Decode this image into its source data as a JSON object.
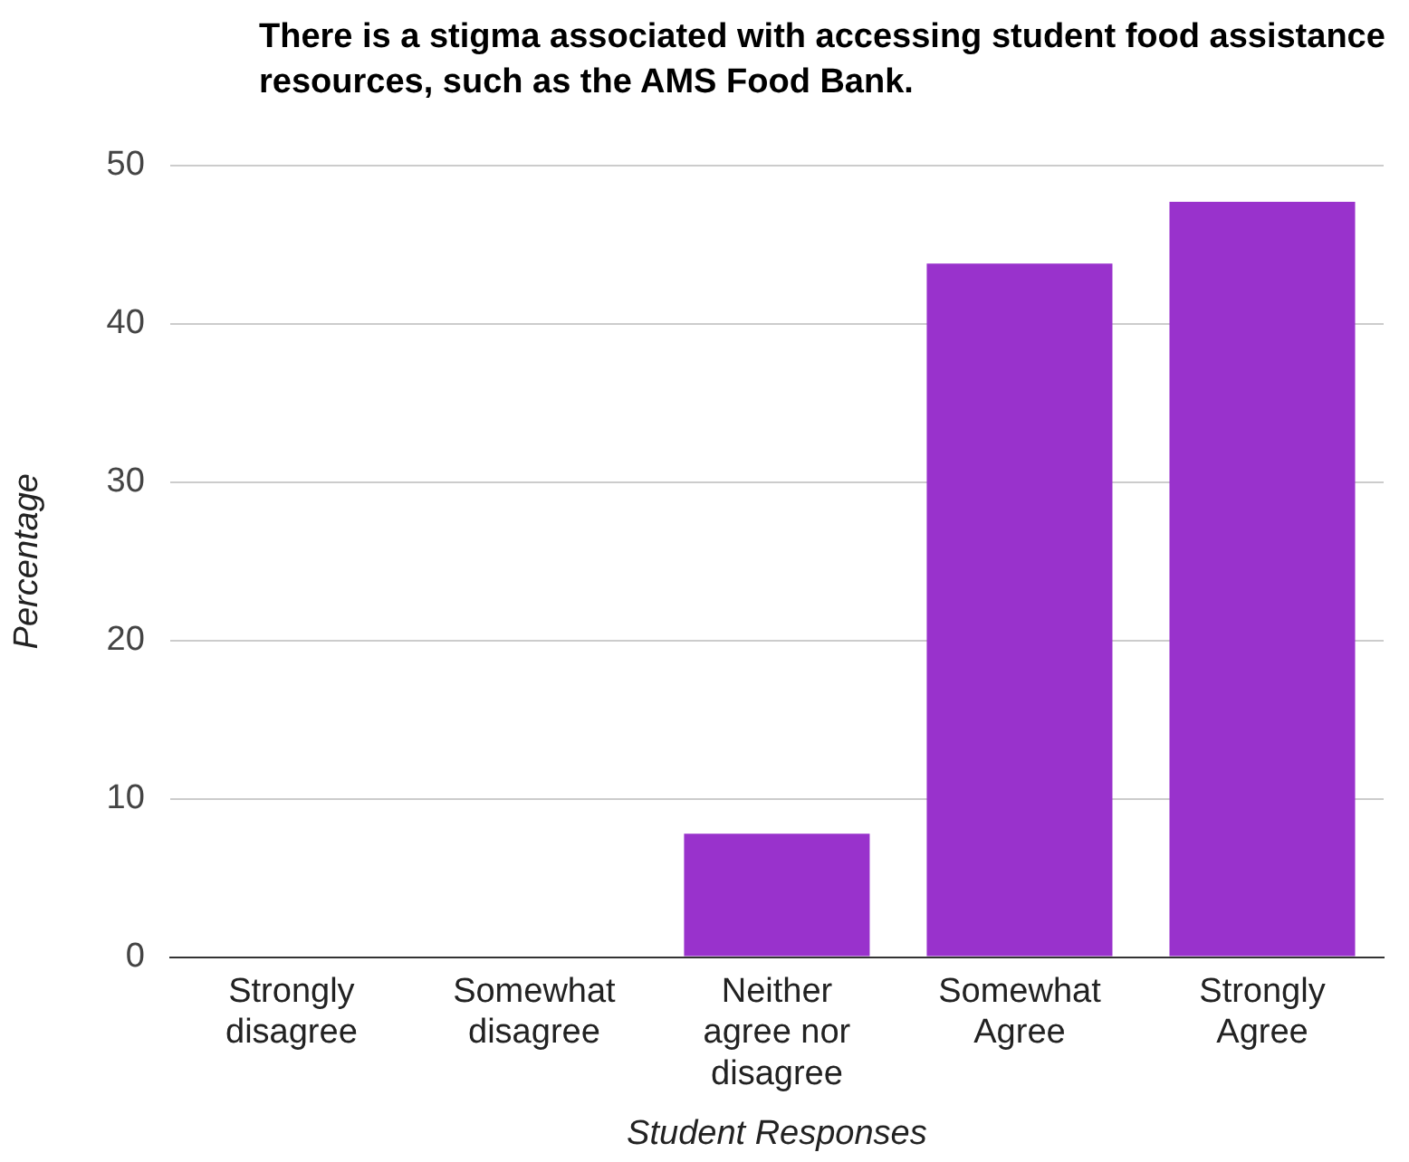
{
  "chart_data": {
    "type": "bar",
    "title": "There is a stigma associated with accessing student food assistance resources, such as the AMS Food Bank.",
    "xlabel": "Student Responses",
    "ylabel": "Percentage",
    "categories": [
      "Strongly disagree",
      "Somewhat disagree",
      "Neither agree nor disagree",
      "Somewhat Agree",
      "Strongly Agree"
    ],
    "values": [
      0,
      0,
      7.8,
      43.8,
      47.7
    ],
    "color": "#9932cc",
    "ylim": [
      0,
      50
    ],
    "yticks": [
      0,
      10,
      20,
      30,
      40,
      50
    ],
    "grid": "y",
    "legend": false
  }
}
